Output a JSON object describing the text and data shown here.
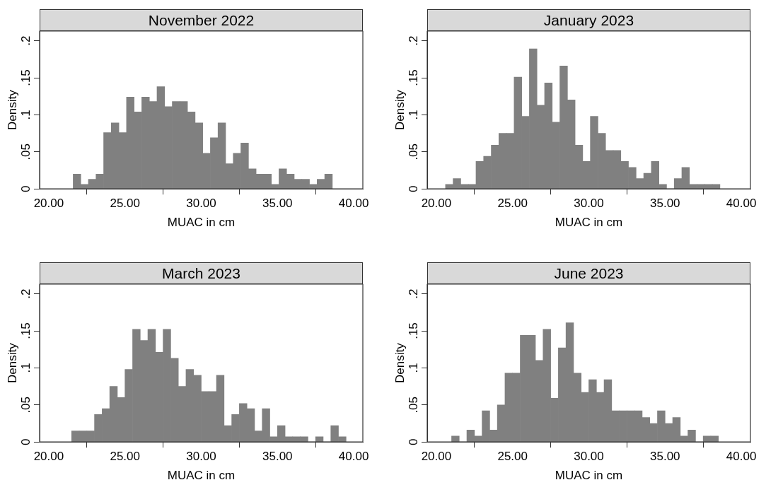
{
  "chart_data": [
    {
      "type": "histogram",
      "title": "November 2022",
      "xlabel": "MUAC in cm",
      "ylabel": "Density",
      "color": "#808080",
      "bins": [
        21.6,
        22.1,
        22.6,
        23.1,
        23.6,
        24.1,
        24.6,
        25.1,
        25.6,
        26.1,
        26.6,
        27.1,
        27.6,
        28.1,
        28.6,
        29.1,
        29.6,
        30.1,
        30.6,
        31.1,
        31.6,
        32.1,
        32.6,
        33.1,
        33.6,
        34.1,
        34.6,
        35.1,
        35.6,
        36.1,
        36.6,
        37.1,
        37.6,
        38.1,
        38.6
      ],
      "values": [
        0.02,
        0.006,
        0.013,
        0.02,
        0.076,
        0.089,
        0.076,
        0.124,
        0.104,
        0.124,
        0.118,
        0.138,
        0.111,
        0.118,
        0.118,
        0.104,
        0.089,
        0.048,
        0.069,
        0.089,
        0.034,
        0.048,
        0.062,
        0.027,
        0.02,
        0.02,
        0.006,
        0.027,
        0.02,
        0.013,
        0.013,
        0.006,
        0.013,
        0.02
      ],
      "xlim": [
        19.4,
        40.6
      ],
      "ylim": [
        0,
        0.213
      ],
      "xticks": [
        {
          "value": 20,
          "label": "20.00"
        },
        {
          "value": 25,
          "label": "25.00"
        },
        {
          "value": 30,
          "label": "30.00"
        },
        {
          "value": 35,
          "label": "35.00"
        },
        {
          "value": 40,
          "label": "40.00"
        }
      ],
      "yticks": [
        {
          "value": 0,
          "label": "0"
        },
        {
          "value": 0.05,
          "label": ".05"
        },
        {
          "value": 0.1,
          "label": ".1"
        },
        {
          "value": 0.15,
          "label": ".15"
        },
        {
          "value": 0.2,
          "label": ".2"
        }
      ]
    },
    {
      "type": "histogram",
      "title": "January 2023",
      "xlabel": "MUAC in cm",
      "ylabel": "Density",
      "color": "#808080",
      "bins": [
        20.6,
        21.1,
        21.6,
        22.1,
        22.6,
        23.1,
        23.6,
        24.1,
        24.6,
        25.1,
        25.6,
        26.1,
        26.6,
        27.1,
        27.6,
        28.1,
        28.6,
        29.1,
        29.6,
        30.1,
        30.6,
        31.1,
        31.6,
        32.1,
        32.6,
        33.1,
        33.6,
        34.1,
        34.6,
        35.1,
        35.6,
        36.1,
        36.6,
        37.1,
        37.6,
        38.1,
        38.6
      ],
      "values": [
        0.006,
        0.014,
        0.006,
        0.006,
        0.037,
        0.044,
        0.059,
        0.075,
        0.075,
        0.151,
        0.098,
        0.189,
        0.113,
        0.143,
        0.09,
        0.166,
        0.12,
        0.059,
        0.037,
        0.098,
        0.075,
        0.052,
        0.052,
        0.037,
        0.029,
        0.014,
        0.021,
        0.037,
        0.006,
        0,
        0.014,
        0.029,
        0.006,
        0.006,
        0.006,
        0.006
      ],
      "xlim": [
        19.4,
        40.6
      ],
      "ylim": [
        0,
        0.213
      ],
      "xticks": [
        {
          "value": 20,
          "label": "20.00"
        },
        {
          "value": 25,
          "label": "25.00"
        },
        {
          "value": 30,
          "label": "30.00"
        },
        {
          "value": 35,
          "label": "35.00"
        },
        {
          "value": 40,
          "label": "40.00"
        }
      ],
      "yticks": [
        {
          "value": 0,
          "label": "0"
        },
        {
          "value": 0.05,
          "label": ".05"
        },
        {
          "value": 0.1,
          "label": ".1"
        },
        {
          "value": 0.15,
          "label": ".15"
        },
        {
          "value": 0.2,
          "label": ".2"
        }
      ]
    },
    {
      "type": "histogram",
      "title": "March 2023",
      "xlabel": "MUAC in cm",
      "ylabel": "Density",
      "color": "#808080",
      "bins": [
        21.5,
        22,
        22.5,
        23,
        23.5,
        24,
        24.5,
        25,
        25.5,
        26,
        26.5,
        27,
        27.5,
        28,
        28.5,
        29,
        29.5,
        30,
        30.5,
        31,
        31.5,
        32,
        32.5,
        33,
        33.5,
        34,
        34.5,
        35,
        35.5,
        36,
        36.5,
        37,
        37.5,
        38,
        38.5,
        39,
        39.5
      ],
      "values": [
        0.015,
        0.015,
        0.015,
        0.037,
        0.045,
        0.075,
        0.06,
        0.098,
        0.152,
        0.137,
        0.152,
        0.121,
        0.152,
        0.113,
        0.075,
        0.098,
        0.09,
        0.068,
        0.068,
        0.09,
        0.022,
        0.037,
        0.052,
        0.045,
        0.015,
        0.045,
        0.007,
        0.022,
        0.007,
        0.007,
        0.007,
        0,
        0.007,
        0,
        0.022,
        0.007
      ],
      "xlim": [
        19.4,
        40.6
      ],
      "ylim": [
        0,
        0.213
      ],
      "xticks": [
        {
          "value": 20,
          "label": "20.00"
        },
        {
          "value": 25,
          "label": "25.00"
        },
        {
          "value": 30,
          "label": "30.00"
        },
        {
          "value": 35,
          "label": "35.00"
        },
        {
          "value": 40,
          "label": "40.00"
        }
      ],
      "yticks": [
        {
          "value": 0,
          "label": "0"
        },
        {
          "value": 0.05,
          "label": ".05"
        },
        {
          "value": 0.1,
          "label": ".1"
        },
        {
          "value": 0.15,
          "label": ".15"
        },
        {
          "value": 0.2,
          "label": ".2"
        }
      ]
    },
    {
      "type": "histogram",
      "title": "June 2023",
      "xlabel": "MUAC in cm",
      "ylabel": "Density",
      "color": "#808080",
      "bins": [
        21,
        21.5,
        22,
        22.5,
        23,
        23.5,
        24,
        24.5,
        25,
        25.5,
        26,
        26.5,
        27,
        27.5,
        28,
        28.5,
        29,
        29.5,
        30,
        30.5,
        31,
        31.5,
        32,
        32.5,
        33,
        33.5,
        34,
        34.5,
        35,
        35.5,
        36,
        36.5,
        37,
        37.5,
        38,
        38.5
      ],
      "values": [
        0.008,
        0,
        0.016,
        0.008,
        0.042,
        0.016,
        0.05,
        0.093,
        0.093,
        0.144,
        0.144,
        0.11,
        0.152,
        0.059,
        0.127,
        0.161,
        0.093,
        0.067,
        0.084,
        0.067,
        0.084,
        0.042,
        0.042,
        0.042,
        0.042,
        0.033,
        0.025,
        0.042,
        0.025,
        0.033,
        0.008,
        0.016,
        0,
        0.008,
        0.008
      ],
      "xlim": [
        19.4,
        40.6
      ],
      "ylim": [
        0,
        0.213
      ],
      "xticks": [
        {
          "value": 20,
          "label": "20.00"
        },
        {
          "value": 25,
          "label": "25.00"
        },
        {
          "value": 30,
          "label": "30.00"
        },
        {
          "value": 35,
          "label": "35.00"
        },
        {
          "value": 40,
          "label": "40.00"
        }
      ],
      "yticks": [
        {
          "value": 0,
          "label": "0"
        },
        {
          "value": 0.05,
          "label": ".05"
        },
        {
          "value": 0.1,
          "label": ".1"
        },
        {
          "value": 0.15,
          "label": ".15"
        },
        {
          "value": 0.2,
          "label": ".2"
        }
      ]
    }
  ]
}
